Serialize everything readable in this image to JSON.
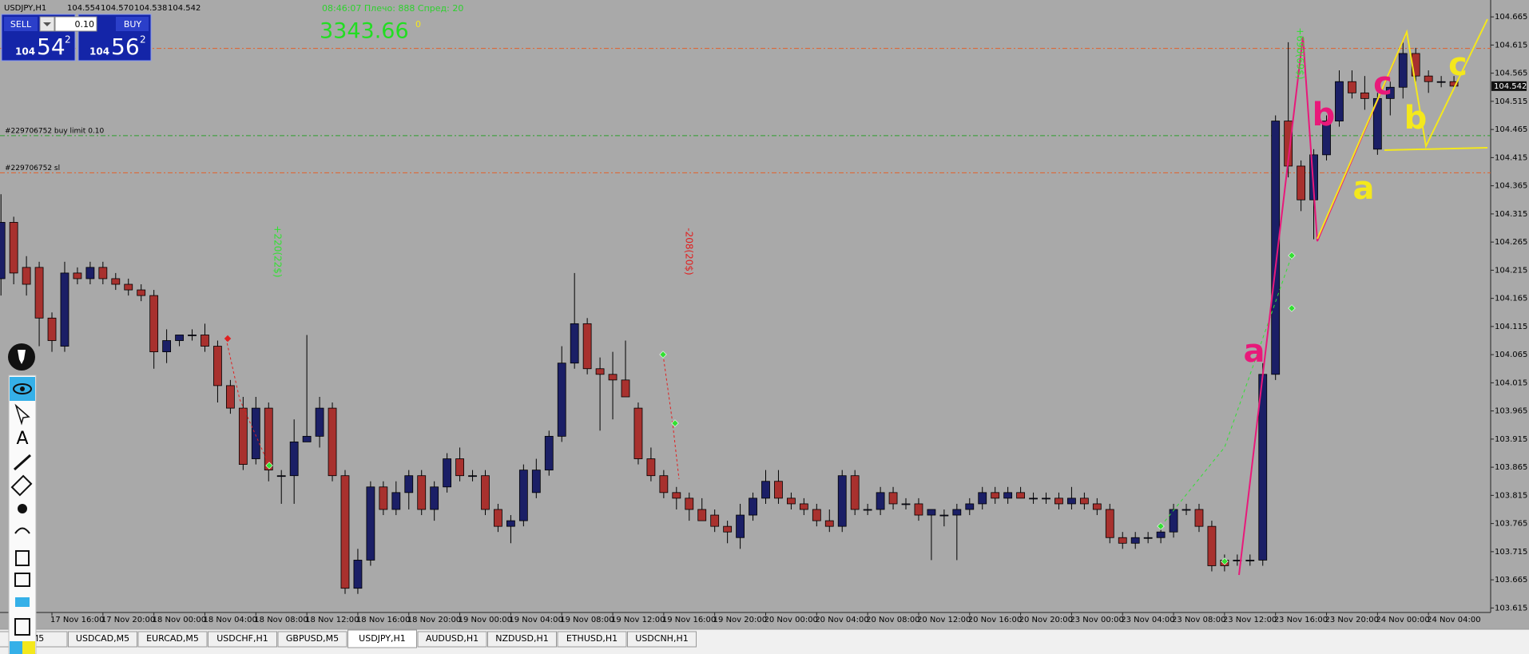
{
  "header": {
    "symbol": "USDJPY,H1",
    "ohlc": [
      "104.554",
      "104.570",
      "104.538",
      "104.542"
    ]
  },
  "trade_panel": {
    "sell": "SELL",
    "buy": "BUY",
    "lots": "0.10",
    "bid": {
      "big_figure": "104",
      "pips": "54",
      "fraction": "2"
    },
    "ask": {
      "big_figure": "104",
      "pips": "56",
      "fraction": "2"
    }
  },
  "info": {
    "status": "08:46:07 Плечо: 888 Спред: 20",
    "equity": "3343.66",
    "counter": "0"
  },
  "chart_data": {
    "type": "candlestick",
    "up_color": "#1b1f66",
    "down_color": "#a8312e",
    "grid": false,
    "ylim": [
      103.607,
      104.695
    ],
    "yticks": [
      104.665,
      104.615,
      104.565,
      104.515,
      104.465,
      104.415,
      104.365,
      104.315,
      104.265,
      104.215,
      104.165,
      104.115,
      104.065,
      104.015,
      103.965,
      103.915,
      103.865,
      103.815,
      103.765,
      103.715,
      103.665,
      103.615
    ],
    "last_price": 104.542,
    "levels": [
      {
        "label": "#229706752 buy limit 0.10",
        "value": 104.454,
        "color": "#2e9e2e"
      },
      {
        "label": "#229706752 sl",
        "value": 104.388,
        "color": "#e2602a"
      },
      {
        "value": 104.609,
        "color": "#e2602a"
      }
    ],
    "categories": [
      null,
      null,
      null,
      null,
      "17 Nov 16:00",
      null,
      null,
      null,
      "17 Nov 20:00",
      null,
      null,
      null,
      "18 Nov 00:00",
      null,
      null,
      null,
      "18 Nov 04:00",
      null,
      null,
      null,
      "18 Nov 08:00",
      null,
      null,
      null,
      "18 Nov 12:00",
      null,
      null,
      null,
      "18 Nov 16:00",
      null,
      null,
      null,
      "18 Nov 20:00",
      null,
      null,
      null,
      "19 Nov 00:00",
      null,
      null,
      null,
      "19 Nov 04:00",
      null,
      null,
      null,
      "19 Nov 08:00",
      null,
      null,
      null,
      "19 Nov 12:00",
      null,
      null,
      null,
      "19 Nov 16:00",
      null,
      null,
      null,
      "19 Nov 20:00",
      null,
      null,
      null,
      "20 Nov 00:00",
      null,
      null,
      null,
      "20 Nov 04:00",
      null,
      null,
      null,
      "20 Nov 08:00",
      null,
      null,
      null,
      "20 Nov 12:00",
      null,
      null,
      null,
      "20 Nov 16:00",
      null,
      null,
      null,
      "20 Nov 20:00",
      null,
      null,
      null,
      "23 Nov 00:00",
      null,
      null,
      null,
      "23 Nov 04:00",
      null,
      null,
      null,
      "23 Nov 08:00",
      null,
      null,
      null,
      "23 Nov 12:00",
      null,
      null,
      null,
      "23 Nov 16:00",
      null,
      null,
      null,
      "23 Nov 20:00",
      null,
      null,
      null,
      "24 Nov 00:00",
      null,
      null,
      null,
      "24 Nov 04:00",
      null,
      null
    ],
    "ohlc": [
      [
        104.2,
        104.35,
        104.17,
        104.3
      ],
      [
        104.3,
        104.31,
        104.19,
        104.21
      ],
      [
        104.22,
        104.24,
        104.17,
        104.19
      ],
      [
        104.22,
        104.23,
        104.08,
        104.13
      ],
      [
        104.13,
        104.14,
        104.07,
        104.09
      ],
      [
        104.08,
        104.23,
        104.07,
        104.21
      ],
      [
        104.21,
        104.22,
        104.19,
        104.2
      ],
      [
        104.2,
        104.23,
        104.19,
        104.22
      ],
      [
        104.22,
        104.23,
        104.19,
        104.2
      ],
      [
        104.2,
        104.21,
        104.18,
        104.19
      ],
      [
        104.19,
        104.2,
        104.17,
        104.18
      ],
      [
        104.18,
        104.19,
        104.16,
        104.17
      ],
      [
        104.17,
        104.18,
        104.04,
        104.07
      ],
      [
        104.07,
        104.11,
        104.05,
        104.09
      ],
      [
        104.09,
        104.1,
        104.08,
        104.1
      ],
      [
        104.1,
        104.11,
        104.09,
        104.1
      ],
      [
        104.1,
        104.12,
        104.07,
        104.08
      ],
      [
        104.08,
        104.09,
        103.98,
        104.01
      ],
      [
        104.01,
        104.02,
        103.96,
        103.97
      ],
      [
        103.97,
        103.99,
        103.86,
        103.87
      ],
      [
        103.88,
        103.99,
        103.87,
        103.97
      ],
      [
        103.97,
        103.98,
        103.84,
        103.86
      ],
      [
        103.85,
        103.86,
        103.8,
        103.85
      ],
      [
        103.85,
        103.95,
        103.8,
        103.91
      ],
      [
        103.91,
        104.1,
        103.91,
        103.92
      ],
      [
        103.92,
        103.99,
        103.9,
        103.97
      ],
      [
        103.97,
        103.98,
        103.84,
        103.85
      ],
      [
        103.85,
        103.86,
        103.64,
        103.65
      ],
      [
        103.65,
        103.72,
        103.64,
        103.7
      ],
      [
        103.7,
        103.84,
        103.69,
        103.83
      ],
      [
        103.83,
        103.84,
        103.78,
        103.79
      ],
      [
        103.79,
        103.84,
        103.78,
        103.82
      ],
      [
        103.82,
        103.86,
        103.79,
        103.85
      ],
      [
        103.85,
        103.86,
        103.78,
        103.79
      ],
      [
        103.79,
        103.84,
        103.77,
        103.83
      ],
      [
        103.83,
        103.89,
        103.82,
        103.88
      ],
      [
        103.88,
        103.9,
        103.84,
        103.85
      ],
      [
        103.85,
        103.86,
        103.84,
        103.85
      ],
      [
        103.85,
        103.86,
        103.78,
        103.79
      ],
      [
        103.79,
        103.8,
        103.75,
        103.76
      ],
      [
        103.76,
        103.78,
        103.73,
        103.77
      ],
      [
        103.77,
        103.87,
        103.76,
        103.86
      ],
      [
        103.82,
        103.88,
        103.81,
        103.86
      ],
      [
        103.86,
        103.93,
        103.85,
        103.92
      ],
      [
        103.92,
        104.08,
        103.91,
        104.05
      ],
      [
        104.05,
        104.21,
        104.04,
        104.12
      ],
      [
        104.12,
        104.13,
        104.03,
        104.04
      ],
      [
        104.04,
        104.06,
        103.93,
        104.03
      ],
      [
        104.03,
        104.07,
        103.95,
        104.02
      ],
      [
        104.02,
        104.09,
        103.99,
        103.99
      ],
      [
        103.97,
        103.98,
        103.87,
        103.88
      ],
      [
        103.88,
        103.9,
        103.84,
        103.85
      ],
      [
        103.85,
        103.86,
        103.81,
        103.82
      ],
      [
        103.82,
        103.83,
        103.79,
        103.81
      ],
      [
        103.81,
        103.82,
        103.77,
        103.79
      ],
      [
        103.79,
        103.81,
        103.77,
        103.77
      ],
      [
        103.78,
        103.79,
        103.75,
        103.76
      ],
      [
        103.76,
        103.77,
        103.73,
        103.75
      ],
      [
        103.74,
        103.8,
        103.72,
        103.78
      ],
      [
        103.78,
        103.82,
        103.77,
        103.81
      ],
      [
        103.81,
        103.86,
        103.8,
        103.84
      ],
      [
        103.84,
        103.86,
        103.8,
        103.81
      ],
      [
        103.81,
        103.82,
        103.79,
        103.8
      ],
      [
        103.8,
        103.81,
        103.78,
        103.79
      ],
      [
        103.79,
        103.8,
        103.76,
        103.77
      ],
      [
        103.77,
        103.79,
        103.75,
        103.76
      ],
      [
        103.76,
        103.86,
        103.75,
        103.85
      ],
      [
        103.85,
        103.86,
        103.78,
        103.79
      ],
      [
        103.79,
        103.8,
        103.78,
        103.79
      ],
      [
        103.79,
        103.83,
        103.78,
        103.82
      ],
      [
        103.82,
        103.83,
        103.79,
        103.8
      ],
      [
        103.8,
        103.81,
        103.79,
        103.8
      ],
      [
        103.8,
        103.81,
        103.77,
        103.78
      ],
      [
        103.78,
        103.79,
        103.7,
        103.79
      ],
      [
        103.78,
        103.79,
        103.76,
        103.78
      ],
      [
        103.78,
        103.8,
        103.7,
        103.79
      ],
      [
        103.79,
        103.81,
        103.78,
        103.8
      ],
      [
        103.8,
        103.83,
        103.79,
        103.82
      ],
      [
        103.82,
        103.83,
        103.8,
        103.81
      ],
      [
        103.81,
        103.83,
        103.8,
        103.82
      ],
      [
        103.82,
        103.83,
        103.81,
        103.81
      ],
      [
        103.81,
        103.82,
        103.8,
        103.81
      ],
      [
        103.81,
        103.82,
        103.8,
        103.81
      ],
      [
        103.81,
        103.82,
        103.79,
        103.8
      ],
      [
        103.8,
        103.83,
        103.79,
        103.81
      ],
      [
        103.81,
        103.82,
        103.79,
        103.8
      ],
      [
        103.8,
        103.81,
        103.78,
        103.79
      ],
      [
        103.79,
        103.8,
        103.73,
        103.74
      ],
      [
        103.74,
        103.75,
        103.72,
        103.73
      ],
      [
        103.73,
        103.75,
        103.72,
        103.74
      ],
      [
        103.74,
        103.75,
        103.73,
        103.74
      ],
      [
        103.74,
        103.76,
        103.73,
        103.75
      ],
      [
        103.75,
        103.8,
        103.74,
        103.79
      ],
      [
        103.79,
        103.8,
        103.78,
        103.79
      ],
      [
        103.79,
        103.8,
        103.75,
        103.76
      ],
      [
        103.76,
        103.77,
        103.68,
        103.69
      ],
      [
        103.7,
        103.71,
        103.68,
        103.69
      ],
      [
        103.7,
        103.71,
        103.69,
        103.7
      ],
      [
        103.7,
        103.71,
        103.69,
        103.7
      ],
      [
        103.7,
        104.05,
        103.69,
        104.03
      ],
      [
        104.03,
        104.49,
        104.02,
        104.48
      ],
      [
        104.48,
        104.62,
        104.38,
        104.4
      ],
      [
        104.4,
        104.41,
        104.32,
        104.34
      ],
      [
        104.34,
        104.43,
        104.27,
        104.42
      ],
      [
        104.42,
        104.49,
        104.41,
        104.48
      ],
      [
        104.48,
        104.57,
        104.47,
        104.55
      ],
      [
        104.55,
        104.57,
        104.52,
        104.53
      ],
      [
        104.53,
        104.56,
        104.5,
        104.52
      ],
      [
        104.43,
        104.53,
        104.42,
        104.52
      ],
      [
        104.52,
        104.55,
        104.49,
        104.54
      ],
      [
        104.54,
        104.62,
        104.52,
        104.6
      ],
      [
        104.6,
        104.61,
        104.55,
        104.56
      ],
      [
        104.56,
        104.57,
        104.53,
        104.55
      ],
      [
        104.55,
        104.56,
        104.54,
        104.55
      ],
      [
        104.55,
        104.56,
        104.54,
        104.542
      ]
    ],
    "trade_labels": [
      {
        "text": "+220(22$)",
        "color": "#33e033"
      },
      {
        "text": "-208(20$)",
        "color": "#e02020"
      },
      {
        "text": "+690(69$)",
        "color": "#33e033"
      }
    ],
    "annotations": [
      {
        "text": "a",
        "color": "#e8197a"
      },
      {
        "text": "b",
        "color": "#e8197a"
      },
      {
        "text": "c",
        "color": "#e8197a"
      },
      {
        "text": "a",
        "color": "#f4e81c"
      },
      {
        "text": "b",
        "color": "#f4e81c"
      },
      {
        "text": "c",
        "color": "#f4e81c"
      }
    ]
  },
  "tabs": [
    "D,M5",
    "USDCAD,M5",
    "EURCAD,M5",
    "USDCHF,H1",
    "GBPUSD,M5",
    "USDJPY,H1",
    "AUDUSD,H1",
    "NZDUSD,H1",
    "ETHUSD,H1",
    "USDCNH,H1"
  ],
  "active_tab": "USDJPY,H1"
}
